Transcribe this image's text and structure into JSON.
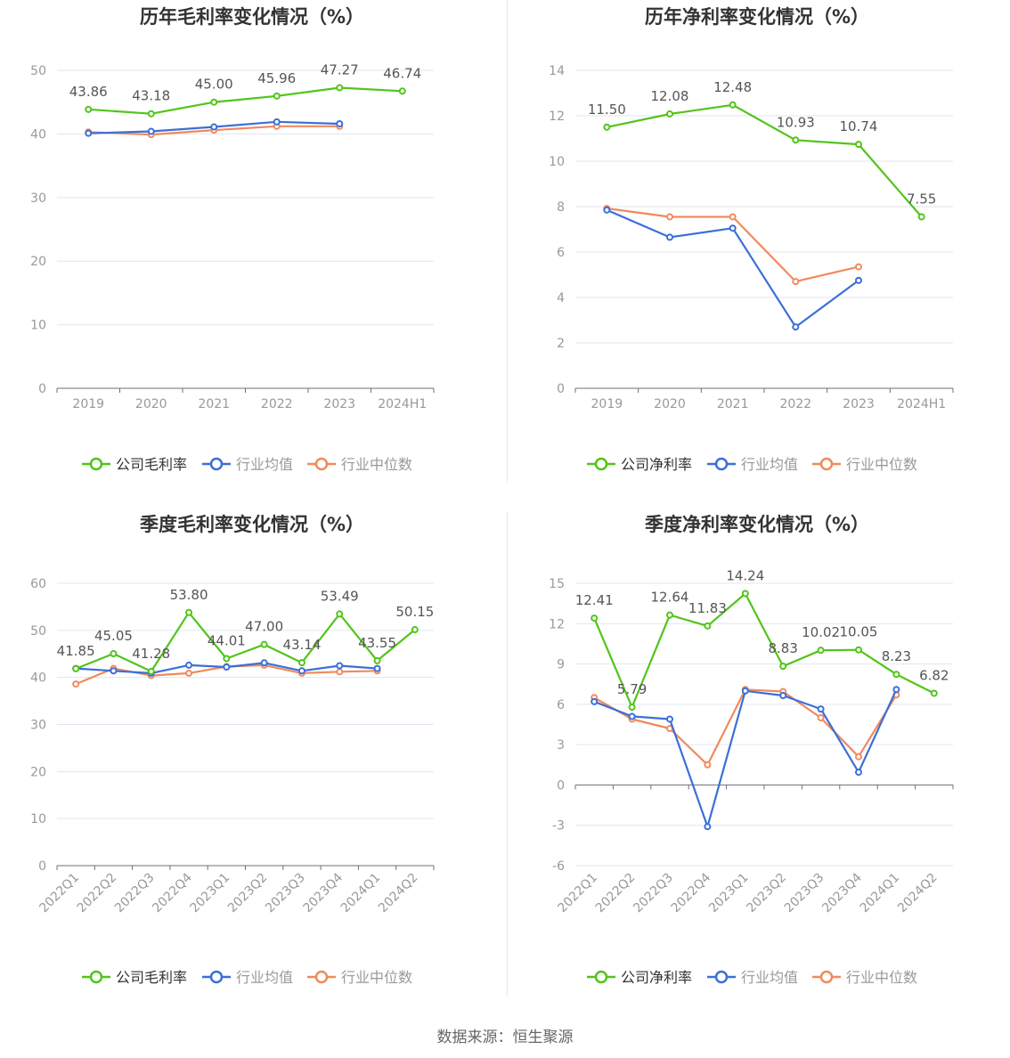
{
  "colors": {
    "company": "#52c41a",
    "avg": "#3b6fd8",
    "median": "#f08a5d"
  },
  "source": "数据来源：恒生聚源",
  "chart_data": [
    {
      "type": "line",
      "title": "历年毛利率变化情况（%）",
      "categories": [
        "2019",
        "2020",
        "2021",
        "2022",
        "2023",
        "2024H1"
      ],
      "ylim": [
        0,
        50
      ],
      "yticks": [
        0,
        10,
        20,
        30,
        40,
        50
      ],
      "series": [
        {
          "name": "公司毛利率",
          "values": [
            43.86,
            43.18,
            45.0,
            45.96,
            47.27,
            46.74
          ]
        },
        {
          "name": "行业均值",
          "values": [
            40.1,
            40.4,
            41.1,
            41.9,
            41.6,
            null
          ]
        },
        {
          "name": "行业中位数",
          "values": [
            40.3,
            39.9,
            40.6,
            41.2,
            41.2,
            null
          ]
        }
      ],
      "labels": [
        "43.86",
        "43.18",
        "45.00",
        "45.96",
        "47.27",
        "46.74"
      ],
      "legend": [
        "公司毛利率",
        "行业均值",
        "行业中位数"
      ],
      "grid": true,
      "legend_position": "bottom"
    },
    {
      "type": "line",
      "title": "历年净利率变化情况（%）",
      "categories": [
        "2019",
        "2020",
        "2021",
        "2022",
        "2023",
        "2024H1"
      ],
      "ylim": [
        0,
        14
      ],
      "yticks": [
        0,
        2,
        4,
        6,
        8,
        10,
        12,
        14
      ],
      "series": [
        {
          "name": "公司净利率",
          "values": [
            11.5,
            12.08,
            12.48,
            10.93,
            10.74,
            7.55
          ]
        },
        {
          "name": "行业均值",
          "values": [
            7.85,
            6.65,
            7.05,
            2.7,
            4.75,
            null
          ]
        },
        {
          "name": "行业中位数",
          "values": [
            7.92,
            7.55,
            7.55,
            4.7,
            5.35,
            null
          ]
        }
      ],
      "labels": [
        "11.50",
        "12.08",
        "12.48",
        "10.93",
        "10.74",
        "7.55"
      ],
      "legend": [
        "公司净利率",
        "行业均值",
        "行业中位数"
      ],
      "grid": true,
      "legend_position": "bottom"
    },
    {
      "type": "line",
      "title": "季度毛利率变化情况（%）",
      "categories": [
        "2022Q1",
        "2022Q2",
        "2022Q3",
        "2022Q4",
        "2023Q1",
        "2023Q2",
        "2023Q3",
        "2023Q4",
        "2024Q1",
        "2024Q2"
      ],
      "ylim": [
        0,
        60
      ],
      "yticks": [
        0,
        10,
        20,
        30,
        40,
        50,
        60
      ],
      "series": [
        {
          "name": "公司毛利率",
          "values": [
            41.85,
            45.05,
            41.28,
            53.8,
            44.01,
            47.0,
            43.14,
            53.49,
            43.55,
            50.15
          ]
        },
        {
          "name": "行业均值",
          "values": [
            41.9,
            41.4,
            40.9,
            42.6,
            42.2,
            43.1,
            41.4,
            42.5,
            41.9,
            null
          ]
        },
        {
          "name": "行业中位数",
          "values": [
            38.6,
            41.9,
            40.4,
            40.9,
            42.3,
            42.6,
            40.9,
            41.2,
            41.4,
            null
          ]
        }
      ],
      "labels": [
        "41.85",
        "45.05",
        "41.28",
        "53.80",
        "44.01",
        "47.00",
        "43.14",
        "53.49",
        "43.55",
        "50.15"
      ],
      "legend": [
        "公司毛利率",
        "行业均值",
        "行业中位数"
      ],
      "grid": true,
      "legend_position": "bottom"
    },
    {
      "type": "line",
      "title": "季度净利率变化情况（%）",
      "categories": [
        "2022Q1",
        "2022Q2",
        "2022Q3",
        "2022Q4",
        "2023Q1",
        "2023Q2",
        "2023Q3",
        "2023Q4",
        "2024Q1",
        "2024Q2"
      ],
      "ylim": [
        -6,
        15
      ],
      "yticks": [
        -6,
        -3,
        0,
        3,
        6,
        9,
        12,
        15
      ],
      "series": [
        {
          "name": "公司净利率",
          "values": [
            12.41,
            5.79,
            12.64,
            11.83,
            14.24,
            8.83,
            10.02,
            10.05,
            8.23,
            6.82
          ]
        },
        {
          "name": "行业均值",
          "values": [
            6.2,
            5.1,
            4.9,
            -3.1,
            7.0,
            6.65,
            5.65,
            0.95,
            7.1,
            null
          ]
        },
        {
          "name": "行业中位数",
          "values": [
            6.5,
            4.9,
            4.2,
            1.5,
            7.1,
            6.95,
            5.0,
            2.1,
            6.7,
            null
          ]
        }
      ],
      "labels": [
        "12.41",
        "5.79",
        "12.64",
        "11.83",
        "14.24",
        "8.83",
        "10.02",
        "10.05",
        "8.23",
        "6.82"
      ],
      "legend": [
        "公司净利率",
        "行业均值",
        "行业中位数"
      ],
      "grid": true,
      "legend_position": "bottom"
    }
  ]
}
